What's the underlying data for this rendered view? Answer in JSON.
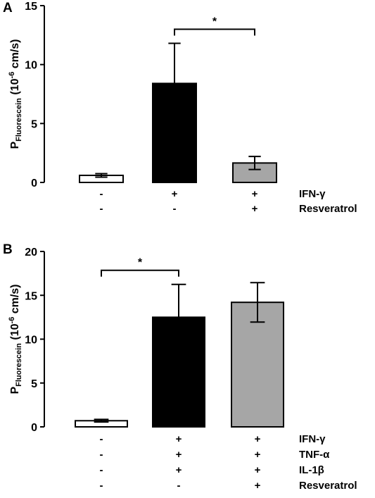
{
  "chart_data": [
    {
      "type": "bar",
      "panel": "A",
      "ylabel": {
        "main": "P",
        "sub": "Fluorescein",
        "rest_open": " (10",
        "sup": "-6",
        "rest_close": " cm/s)"
      },
      "ylim": [
        0,
        15
      ],
      "yticks": [
        0,
        5,
        10,
        15
      ],
      "bars": [
        {
          "value": 0.6,
          "error": 0.15,
          "color": "#ffffff"
        },
        {
          "value": 8.4,
          "error": 3.4,
          "color": "#000000"
        },
        {
          "value": 1.65,
          "error": 0.55,
          "color": "#a6a6a6"
        }
      ],
      "condition_rows": [
        {
          "label": "IFN-γ",
          "values": [
            "-",
            "+",
            "+"
          ]
        },
        {
          "label": "Resveratrol",
          "values": [
            "-",
            "-",
            "+"
          ]
        }
      ],
      "significance": [
        {
          "from_bar": 1,
          "to_bar": 2,
          "label": "*"
        }
      ]
    },
    {
      "type": "bar",
      "panel": "B",
      "ylabel": {
        "main": "P",
        "sub": "Fluorescein",
        "rest_open": " (10",
        "sup": "-6",
        "rest_close": " cm/s)"
      },
      "ylim": [
        0,
        20
      ],
      "yticks": [
        0,
        5,
        10,
        15,
        20
      ],
      "bars": [
        {
          "value": 0.7,
          "error": 0.15,
          "color": "#ffffff"
        },
        {
          "value": 12.5,
          "error": 3.75,
          "color": "#000000"
        },
        {
          "value": 14.2,
          "error": 2.25,
          "color": "#a6a6a6"
        }
      ],
      "condition_rows": [
        {
          "label": "IFN-γ",
          "values": [
            "-",
            "+",
            "+"
          ]
        },
        {
          "label": "TNF-α",
          "values": [
            "-",
            "+",
            "+"
          ]
        },
        {
          "label": "IL-1β",
          "values": [
            "-",
            "+",
            "+"
          ]
        },
        {
          "label": "Resveratrol",
          "values": [
            "-",
            "-",
            "+"
          ]
        }
      ],
      "significance": [
        {
          "from_bar": 0,
          "to_bar": 1,
          "label": "*"
        }
      ]
    }
  ]
}
